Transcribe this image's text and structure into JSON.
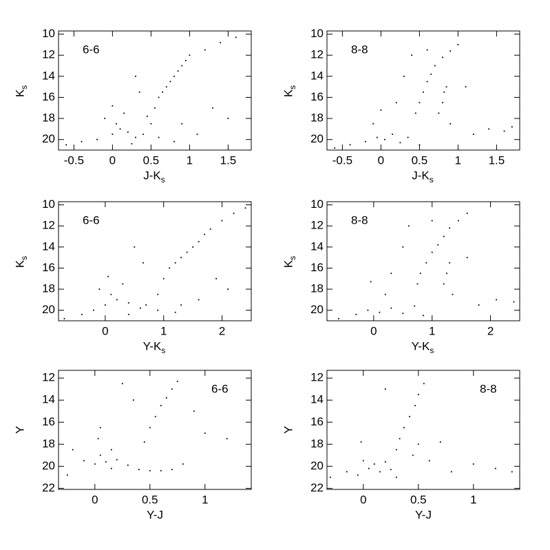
{
  "chart_data": [
    {
      "type": "scatter",
      "label": "6-6",
      "xlabel": "J-K",
      "xlabel_sub": "s",
      "ylabel": "K",
      "ylabel_sub": "s",
      "color": "#000000",
      "xlim": [
        -0.7,
        1.8
      ],
      "ylim": [
        21,
        9.7
      ],
      "xticks": [
        -0.5,
        0,
        0.5,
        1,
        1.5
      ],
      "yticks": [
        10,
        12,
        14,
        16,
        18,
        20
      ],
      "x": [
        -0.6,
        -0.4,
        -0.2,
        0,
        0.1,
        0.2,
        0.3,
        0.05,
        0.15,
        0,
        0.4,
        0.5,
        0.55,
        0.6,
        0.65,
        0.7,
        0.75,
        0.8,
        0.85,
        0.9,
        0.95,
        1,
        1.2,
        1.4,
        1.6,
        1.3,
        1.5,
        0.3,
        0.9,
        1.1,
        0.6,
        0.8,
        -0.1,
        0.25,
        0.45,
        0.35
      ],
      "values": [
        20.5,
        20.2,
        20,
        19.5,
        19,
        19.3,
        19.8,
        18.5,
        17.5,
        16.8,
        19.5,
        18.5,
        17,
        16,
        15.5,
        15,
        14.5,
        14,
        13.5,
        13,
        12.5,
        12,
        11.5,
        10.8,
        10.3,
        17,
        18,
        14,
        18.5,
        19.5,
        19.8,
        20.2,
        18,
        20.4,
        17.8,
        15.5
      ]
    },
    {
      "type": "scatter",
      "label": "8-8",
      "xlabel": "J-K",
      "xlabel_sub": "s",
      "ylabel": "K",
      "ylabel_sub": "s",
      "color": "#000000",
      "xlim": [
        -0.7,
        1.8
      ],
      "ylim": [
        21,
        9.7
      ],
      "xticks": [
        -0.5,
        0,
        0.5,
        1,
        1.5
      ],
      "yticks": [
        10,
        12,
        14,
        16,
        18,
        20
      ],
      "x": [
        -0.6,
        -0.4,
        -0.2,
        -0.05,
        0.05,
        0.15,
        0.25,
        0.35,
        0,
        0.45,
        0.5,
        0.55,
        0.6,
        0.65,
        0.7,
        0.8,
        0.9,
        1,
        0.75,
        0.8,
        0.82,
        0.85,
        0.9,
        1.2,
        1.4,
        1.6,
        1.7,
        0.4,
        0.3,
        0.6,
        1.1,
        0.2,
        0.5,
        -0.1
      ],
      "values": [
        20.8,
        20.5,
        20.2,
        19.8,
        20,
        19.5,
        20.3,
        19.8,
        17.2,
        17.5,
        16.5,
        15.5,
        14.5,
        13.8,
        13,
        12.2,
        11.6,
        11,
        17.5,
        16.5,
        15.5,
        15,
        18.5,
        19.5,
        19,
        19.2,
        18.8,
        12,
        14,
        11.5,
        15,
        16.5,
        20.5,
        18.5
      ]
    },
    {
      "type": "scatter",
      "label": "6-6",
      "xlabel": "Y-K",
      "xlabel_sub": "s",
      "ylabel": "K",
      "ylabel_sub": "s",
      "color": "#000000",
      "xlim": [
        -0.8,
        2.5
      ],
      "ylim": [
        21,
        9.7
      ],
      "xticks": [
        0,
        1,
        2
      ],
      "yticks": [
        10,
        12,
        14,
        16,
        18,
        20
      ],
      "x": [
        -0.7,
        -0.4,
        -0.2,
        0,
        0.2,
        0.4,
        0.6,
        0.1,
        0.3,
        0.05,
        0.7,
        0.9,
        1,
        1.1,
        1.2,
        1.3,
        1.4,
        1.5,
        1.6,
        1.7,
        1.8,
        2,
        2.2,
        2.4,
        1.9,
        2.1,
        0.5,
        1.3,
        1.6,
        0.9,
        1.2,
        -0.1,
        0.4,
        0.65
      ],
      "values": [
        20.8,
        20.4,
        20,
        19.5,
        19,
        19.3,
        19.8,
        18.5,
        17.5,
        16.8,
        19.5,
        18.5,
        17,
        16,
        15.5,
        15,
        14.5,
        14,
        13.5,
        12.8,
        12.3,
        11.5,
        10.8,
        10.3,
        17,
        18,
        14,
        19.5,
        19,
        20,
        20.2,
        18,
        20.4,
        15.5
      ]
    },
    {
      "type": "scatter",
      "label": "8-8",
      "xlabel": "Y-K",
      "xlabel_sub": "s",
      "ylabel": "K",
      "ylabel_sub": "s",
      "color": "#000000",
      "xlim": [
        -0.8,
        2.5
      ],
      "ylim": [
        21,
        9.7
      ],
      "xticks": [
        0,
        1,
        2
      ],
      "yticks": [
        10,
        12,
        14,
        16,
        18,
        20
      ],
      "x": [
        -0.6,
        -0.3,
        -0.1,
        0.1,
        0.3,
        0.5,
        0.7,
        -0.05,
        0.75,
        0.8,
        0.9,
        1,
        1.1,
        1.2,
        1.3,
        1.45,
        1.6,
        1.2,
        1.25,
        1.3,
        1.35,
        1.8,
        2.1,
        2.4,
        0.6,
        0.5,
        1,
        1.6,
        0.3,
        0.85,
        0.2
      ],
      "values": [
        20.8,
        20.4,
        20,
        20.2,
        19.8,
        20.3,
        19.6,
        17.3,
        17.5,
        16.5,
        15.5,
        14.5,
        13.8,
        13,
        12.2,
        11.5,
        10.8,
        17.5,
        16.5,
        15.5,
        18.5,
        19.5,
        19,
        19.2,
        12,
        14,
        11.5,
        15,
        16.5,
        20.5,
        18.5
      ]
    },
    {
      "type": "scatter",
      "label": "6-6",
      "xlabel": "Y-J",
      "ylabel": "Y",
      "color": "#000000",
      "xlim": [
        -0.33,
        1.42
      ],
      "ylim": [
        22.1,
        11.3
      ],
      "xticks": [
        0,
        0.5,
        1
      ],
      "yticks": [
        12,
        14,
        16,
        18,
        20,
        22
      ],
      "x": [
        -0.25,
        -0.1,
        0,
        0.05,
        0.1,
        0.15,
        0.2,
        0.3,
        0.4,
        0.03,
        0.05,
        0.45,
        0.5,
        0.55,
        0.6,
        0.65,
        0.7,
        0.75,
        0.35,
        0.6,
        0.8,
        1,
        1.2,
        0.9,
        0.25,
        0.15,
        0.7,
        0.5,
        -0.2
      ],
      "values": [
        20.8,
        19.5,
        19.8,
        19,
        19.6,
        20.2,
        19.4,
        19.9,
        20.3,
        17.5,
        16.5,
        17.8,
        16.5,
        15.5,
        14.5,
        13.8,
        13,
        12.3,
        14,
        20.4,
        19.8,
        17,
        17.5,
        15,
        12.5,
        18.5,
        20.3,
        20.4,
        18.5
      ]
    },
    {
      "type": "scatter",
      "label": "8-8",
      "xlabel": "Y-J",
      "ylabel": "Y",
      "color": "#000000",
      "xlim": [
        -0.33,
        1.42
      ],
      "ylim": [
        22.1,
        11.3
      ],
      "xticks": [
        0,
        0.5,
        1
      ],
      "yticks": [
        12,
        14,
        16,
        18,
        20,
        22
      ],
      "x": [
        -0.3,
        -0.15,
        -0.05,
        0,
        0.05,
        0.1,
        0.15,
        0.2,
        0.25,
        -0.02,
        0.3,
        0.33,
        0.37,
        0.42,
        0.47,
        0.5,
        0.55,
        0.45,
        0.5,
        0.6,
        0.8,
        1,
        1.2,
        1.35,
        0.2,
        0.7,
        0.3
      ],
      "values": [
        21,
        20.5,
        20.8,
        19.5,
        20.2,
        19.8,
        20.5,
        19.6,
        20.3,
        17.8,
        18.5,
        17.5,
        16.5,
        15.5,
        14.5,
        13.5,
        12.5,
        19,
        18,
        19.5,
        20.5,
        19.8,
        20.2,
        20.5,
        13,
        17.8,
        21
      ]
    }
  ]
}
